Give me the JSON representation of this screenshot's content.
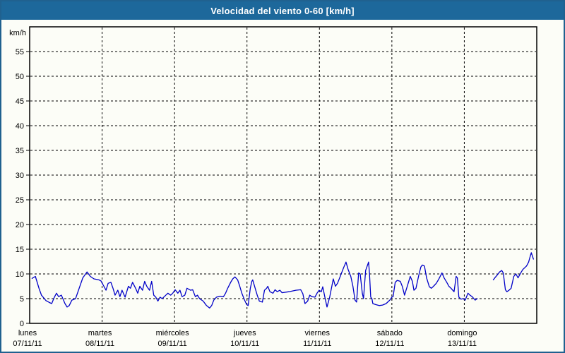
{
  "title": "Velocidad del viento 0-60 [km/h]",
  "colors": {
    "titlebar_bg": "#1d689b",
    "titlebar_text": "#ffffff",
    "page_border": "#20618f",
    "page_bg": "#fcfdf7",
    "axis": "#000000",
    "grid": "#000000",
    "series_line": "#0000c8"
  },
  "chart_data": {
    "type": "line",
    "title": "Velocidad del viento 0-60 [km/h]",
    "unit_label": "km/h",
    "ylim": [
      0,
      60
    ],
    "yticks": [
      0,
      5,
      10,
      15,
      20,
      25,
      30,
      35,
      40,
      45,
      50,
      55
    ],
    "grid": "dashed",
    "legend_position": "none",
    "x_axis_hours_per_day": 24,
    "x_days": [
      {
        "name": "lunes",
        "date": "07/11/11"
      },
      {
        "name": "martes",
        "date": "08/11/11"
      },
      {
        "name": "miércoles",
        "date": "09/11/11"
      },
      {
        "name": "jueves",
        "date": "10/11/11"
      },
      {
        "name": "viernes",
        "date": "11/11/11"
      },
      {
        "name": "sábado",
        "date": "12/11/11"
      },
      {
        "name": "domingo",
        "date": "13/11/11"
      }
    ],
    "series": [
      {
        "name": "velocidad del viento",
        "color": "#0000c8",
        "x_unit": "hours_from_monday_00",
        "y_unit": "km/h",
        "segments": [
          [
            [
              0.8,
              9.1
            ],
            [
              1.9,
              9.5
            ],
            [
              3.1,
              7.1
            ],
            [
              3.9,
              5.7
            ],
            [
              5.4,
              4.6
            ],
            [
              6.6,
              4.2
            ],
            [
              7.3,
              4.0
            ],
            [
              8.2,
              5.3
            ],
            [
              8.9,
              6.1
            ],
            [
              9.6,
              5.4
            ],
            [
              10.5,
              5.7
            ],
            [
              11.7,
              4.0
            ],
            [
              12.4,
              3.3
            ],
            [
              13.1,
              3.6
            ],
            [
              14.0,
              4.7
            ],
            [
              15.2,
              5.0
            ],
            [
              16.4,
              7.1
            ],
            [
              17.6,
              9.2
            ],
            [
              19.0,
              10.4
            ],
            [
              20.1,
              9.5
            ],
            [
              21.3,
              9.0
            ],
            [
              22.9,
              8.8
            ],
            [
              23.6,
              8.6
            ],
            [
              24.6,
              7.5
            ],
            [
              25.3,
              6.7
            ],
            [
              26.0,
              8.1
            ],
            [
              26.9,
              8.3
            ],
            [
              27.6,
              7.1
            ],
            [
              28.3,
              5.7
            ],
            [
              29.2,
              6.7
            ],
            [
              29.9,
              5.4
            ],
            [
              30.6,
              6.7
            ],
            [
              31.6,
              5.3
            ],
            [
              32.7,
              7.5
            ],
            [
              33.4,
              7.1
            ],
            [
              34.1,
              8.3
            ],
            [
              35.1,
              7.1
            ],
            [
              35.8,
              6.1
            ],
            [
              36.5,
              7.5
            ],
            [
              37.4,
              6.7
            ],
            [
              38.1,
              8.5
            ],
            [
              38.8,
              7.5
            ],
            [
              39.7,
              6.7
            ],
            [
              40.4,
              8.5
            ],
            [
              41.1,
              5.7
            ],
            [
              41.8,
              5.3
            ],
            [
              42.5,
              4.5
            ],
            [
              43.2,
              5.3
            ],
            [
              43.9,
              5.0
            ],
            [
              44.6,
              5.4
            ],
            [
              45.8,
              6.1
            ],
            [
              46.7,
              5.7
            ],
            [
              47.4,
              6.1
            ],
            [
              48.2,
              6.8
            ],
            [
              49.1,
              6.1
            ],
            [
              49.8,
              6.7
            ],
            [
              50.5,
              5.4
            ],
            [
              51.4,
              5.7
            ],
            [
              52.1,
              7.1
            ],
            [
              53.3,
              6.7
            ],
            [
              54.0,
              6.8
            ],
            [
              54.9,
              5.4
            ],
            [
              55.6,
              5.7
            ],
            [
              56.3,
              5.0
            ],
            [
              57.5,
              4.5
            ],
            [
              58.6,
              3.6
            ],
            [
              59.6,
              3.1
            ],
            [
              60.3,
              3.6
            ],
            [
              61.0,
              4.7
            ],
            [
              61.9,
              5.3
            ],
            [
              63.1,
              5.5
            ],
            [
              64.2,
              5.4
            ],
            [
              64.9,
              6.1
            ],
            [
              65.6,
              7.1
            ],
            [
              66.6,
              8.3
            ],
            [
              67.3,
              9.0
            ],
            [
              68.0,
              9.4
            ],
            [
              68.9,
              8.8
            ],
            [
              69.6,
              7.5
            ],
            [
              70.3,
              6.1
            ],
            [
              71.2,
              4.7
            ],
            [
              71.9,
              3.8
            ],
            [
              72.4,
              3.6
            ],
            [
              73.1,
              7.1
            ],
            [
              73.6,
              8.5
            ],
            [
              73.9,
              8.8
            ],
            [
              74.7,
              7.1
            ],
            [
              75.4,
              5.7
            ],
            [
              76.1,
              4.5
            ],
            [
              77.1,
              4.3
            ],
            [
              77.8,
              6.7
            ],
            [
              78.5,
              7.1
            ],
            [
              78.9,
              7.5
            ],
            [
              79.6,
              6.4
            ],
            [
              80.6,
              6.1
            ],
            [
              81.3,
              6.8
            ],
            [
              82.0,
              6.4
            ],
            [
              82.9,
              6.7
            ],
            [
              83.6,
              6.2
            ],
            [
              85.9,
              6.4
            ],
            [
              88.2,
              6.7
            ],
            [
              89.8,
              6.8
            ],
            [
              90.5,
              6.0
            ],
            [
              91.2,
              4.0
            ],
            [
              92.1,
              4.5
            ],
            [
              92.8,
              5.7
            ],
            [
              93.5,
              5.4
            ],
            [
              94.5,
              5.3
            ],
            [
              95.2,
              6.1
            ],
            [
              95.9,
              6.7
            ],
            [
              96.6,
              6.4
            ],
            [
              97.1,
              7.4
            ],
            [
              97.8,
              5.3
            ],
            [
              98.5,
              3.3
            ],
            [
              99.4,
              5.3
            ],
            [
              100.6,
              9.0
            ],
            [
              101.3,
              7.5
            ],
            [
              102.0,
              8.1
            ],
            [
              103.2,
              10.0
            ],
            [
              104.1,
              11.4
            ],
            [
              104.8,
              12.4
            ],
            [
              105.5,
              10.9
            ],
            [
              106.4,
              9.5
            ],
            [
              107.1,
              7.5
            ],
            [
              107.8,
              4.7
            ],
            [
              108.3,
              4.3
            ],
            [
              109.0,
              10.2
            ],
            [
              109.5,
              10.0
            ],
            [
              110.2,
              6.1
            ],
            [
              110.6,
              5.0
            ],
            [
              111.3,
              10.7
            ],
            [
              112.3,
              12.4
            ],
            [
              112.6,
              10.0
            ],
            [
              113.0,
              5.3
            ],
            [
              113.4,
              5.0
            ],
            [
              113.7,
              4.0
            ],
            [
              114.6,
              3.8
            ],
            [
              115.8,
              3.6
            ],
            [
              116.9,
              3.7
            ],
            [
              118.1,
              4.0
            ],
            [
              119.3,
              4.7
            ],
            [
              120.0,
              5.3
            ],
            [
              120.4,
              5.4
            ],
            [
              121.1,
              8.3
            ],
            [
              121.8,
              8.7
            ],
            [
              122.8,
              8.5
            ],
            [
              123.5,
              7.4
            ],
            [
              124.2,
              5.7
            ],
            [
              124.9,
              7.1
            ],
            [
              126.1,
              9.5
            ],
            [
              126.8,
              8.5
            ],
            [
              127.3,
              6.7
            ],
            [
              128.0,
              7.1
            ],
            [
              128.9,
              9.7
            ],
            [
              129.6,
              11.4
            ],
            [
              130.1,
              11.8
            ],
            [
              130.8,
              11.6
            ],
            [
              131.5,
              9.2
            ],
            [
              132.4,
              7.4
            ],
            [
              133.1,
              7.1
            ],
            [
              133.8,
              7.5
            ],
            [
              134.7,
              8.1
            ],
            [
              135.4,
              8.8
            ],
            [
              136.6,
              10.2
            ],
            [
              137.3,
              9.2
            ],
            [
              138.2,
              8.3
            ],
            [
              138.9,
              7.5
            ],
            [
              139.6,
              7.1
            ],
            [
              140.6,
              6.4
            ],
            [
              141.3,
              9.5
            ],
            [
              141.7,
              9.2
            ],
            [
              142.2,
              5.3
            ],
            [
              142.9,
              4.9
            ],
            [
              143.6,
              5.0
            ],
            [
              144.3,
              4.7
            ],
            [
              145.2,
              6.1
            ],
            [
              145.9,
              5.7
            ],
            [
              146.6,
              5.4
            ],
            [
              147.6,
              4.7
            ],
            [
              148.3,
              5.0
            ]
          ],
          [
            [
              153.6,
              8.8
            ],
            [
              154.1,
              9.2
            ],
            [
              154.8,
              9.7
            ],
            [
              155.7,
              10.4
            ],
            [
              156.4,
              10.7
            ],
            [
              156.9,
              10.2
            ],
            [
              157.6,
              6.8
            ],
            [
              158.1,
              6.4
            ],
            [
              158.8,
              6.7
            ],
            [
              159.5,
              7.1
            ],
            [
              160.4,
              9.5
            ],
            [
              161.1,
              10.0
            ],
            [
              161.8,
              9.2
            ],
            [
              162.7,
              10.2
            ],
            [
              163.4,
              10.9
            ],
            [
              164.6,
              11.6
            ],
            [
              165.3,
              12.4
            ],
            [
              165.8,
              13.5
            ],
            [
              166.2,
              14.3
            ],
            [
              166.9,
              13.0
            ]
          ]
        ]
      }
    ]
  }
}
